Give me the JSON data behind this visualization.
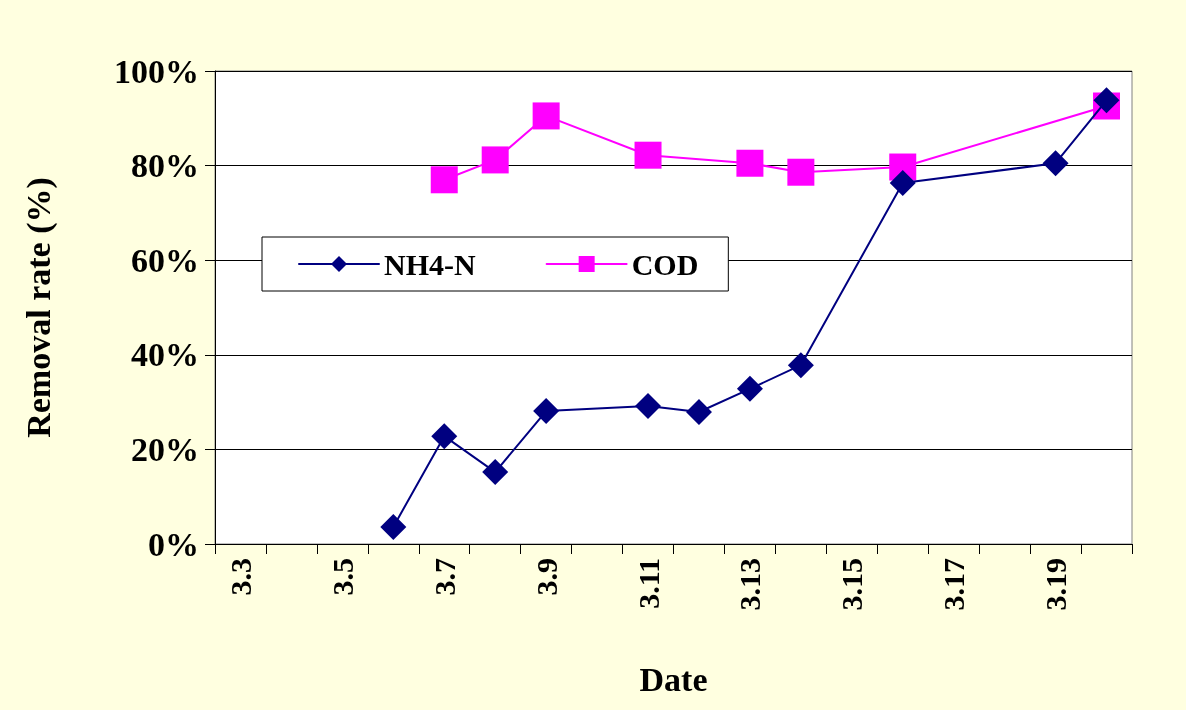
{
  "chart_data": {
    "type": "line",
    "xlabel": "Date",
    "ylabel": "Removal rate (%)",
    "categories": [
      "3.3",
      null,
      "3.5",
      null,
      "3.7",
      null,
      "3.9",
      null,
      "3.11",
      null,
      "3.13",
      null,
      "3.15",
      null,
      "3.17",
      null,
      "3.19",
      null
    ],
    "series": [
      {
        "name": "NH4-N",
        "color": "#000080",
        "marker": "diamond",
        "values": [
          null,
          null,
          null,
          3.6,
          22.8,
          15.2,
          28.1,
          null,
          29.2,
          27.9,
          32.8,
          37.8,
          null,
          76.3,
          null,
          null,
          80.5,
          93.8
        ]
      },
      {
        "name": "COD",
        "color": "#ff00ff",
        "marker": "square",
        "values": [
          null,
          null,
          null,
          null,
          77.0,
          81.2,
          90.5,
          null,
          82.2,
          null,
          80.5,
          78.6,
          null,
          79.7,
          null,
          null,
          null,
          92.6
        ]
      }
    ],
    "ylim": [
      0,
      100
    ],
    "yticks": [
      {
        "value": 0,
        "label": "0%"
      },
      {
        "value": 20,
        "label": "20%"
      },
      {
        "value": 40,
        "label": "40%"
      },
      {
        "value": 60,
        "label": "60%"
      },
      {
        "value": 80,
        "label": "80%"
      },
      {
        "value": 100,
        "label": "100%"
      }
    ],
    "grid": "y",
    "legend": "left"
  }
}
